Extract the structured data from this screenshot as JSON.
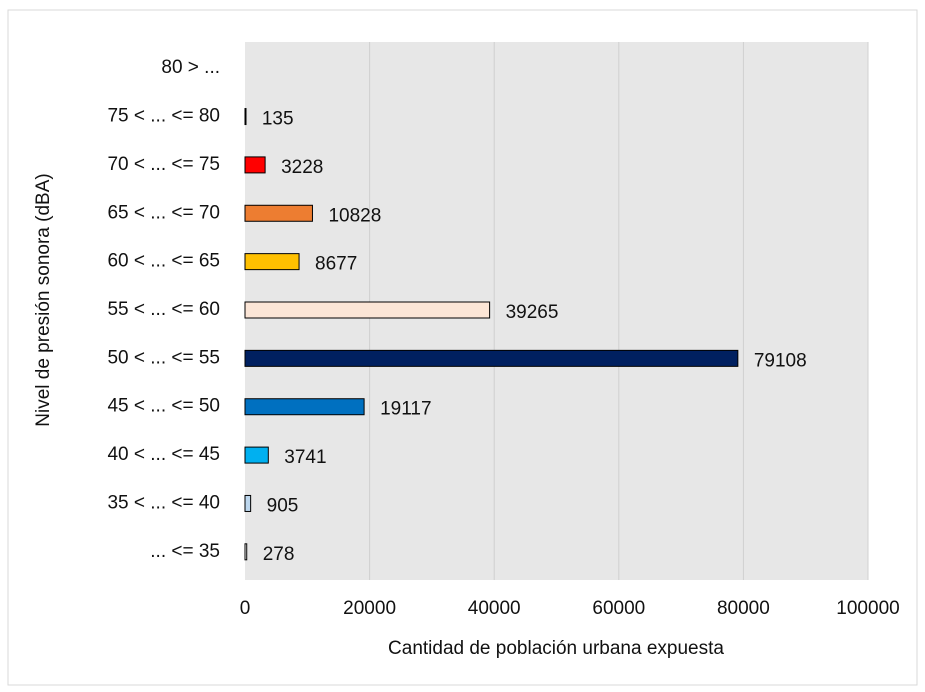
{
  "chart_data": {
    "type": "barh",
    "xlabel": "Cantidad de población urbana expuesta",
    "ylabel": "Nivel de presión sonora (dBA)",
    "categories": [
      "80 > ...",
      "75 < ... <= 80",
      "70 < ... <= 75",
      "65 < ... <= 70",
      "60 < ... <= 65",
      "55 < ... <= 60",
      "50 < ... <= 55",
      "45 < ... <= 50",
      "40 < ... <= 45",
      "35 < ... <= 40",
      "... <= 35"
    ],
    "values": [
      null,
      135,
      3228,
      10828,
      8677,
      39265,
      79108,
      19117,
      3741,
      905,
      278
    ],
    "colors": [
      null,
      "#ffffff",
      "#ff0000",
      "#ed7d31",
      "#ffc000",
      "#fbe5d6",
      "#002060",
      "#0070c0",
      "#00b0f0",
      "#bdd7ee",
      "#ffffff"
    ],
    "xlim": [
      0,
      100000
    ],
    "xticks": [
      0,
      20000,
      40000,
      60000,
      80000,
      100000
    ],
    "grid": true
  }
}
